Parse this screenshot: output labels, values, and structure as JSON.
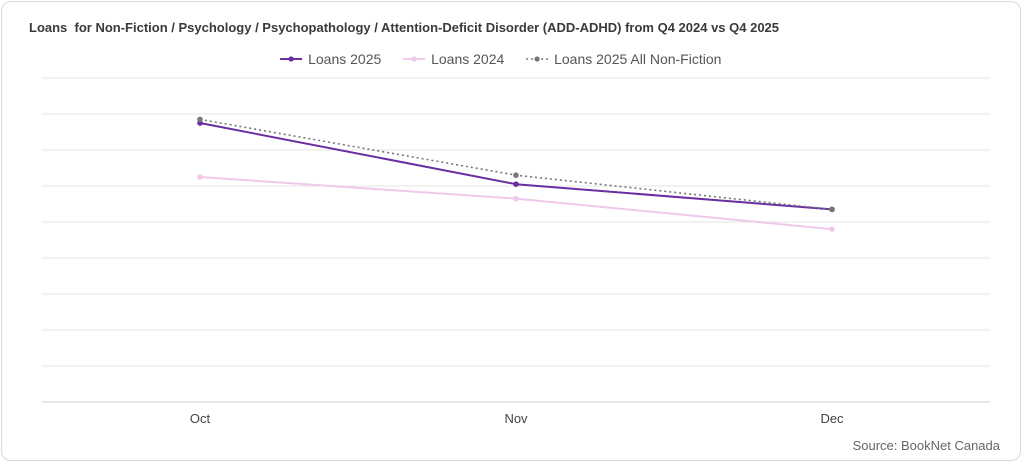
{
  "chart_data": {
    "type": "line",
    "title": "Loans  for Non-Fiction / Psychology / Psychopathology / Attention-Deficit Disorder (ADD-ADHD) from Q4 2024 vs Q4 2025",
    "source": "Source: BookNet Canada",
    "categories": [
      "Oct",
      "Nov",
      "Dec"
    ],
    "ylim": [
      0,
      9
    ],
    "grid": true,
    "y_tick_labels_shown": false,
    "legend_position": "top-center",
    "series": [
      {
        "name": "Loans 2025",
        "values": [
          7.75,
          6.05,
          5.35
        ],
        "color": "#6a2ea0",
        "style": "solid"
      },
      {
        "name": "Loans 2024",
        "values": [
          6.25,
          5.65,
          4.8
        ],
        "color": "#f0c8ec",
        "style": "solid"
      },
      {
        "name": "Loans 2025 All Non-Fiction",
        "values": [
          7.85,
          6.3,
          5.35
        ],
        "color": "#777777",
        "style": "dotted"
      }
    ]
  }
}
